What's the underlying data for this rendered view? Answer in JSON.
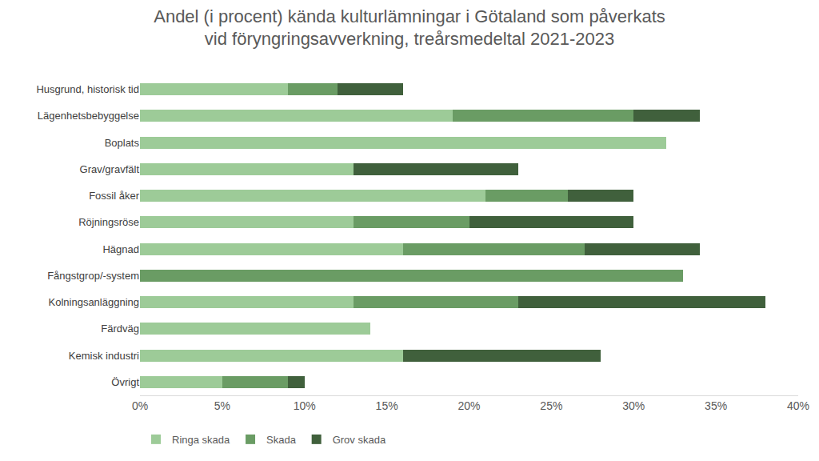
{
  "chart_data": {
    "type": "bar",
    "orientation": "horizontal",
    "stacked": true,
    "title": "Andel (i procent) kända kulturlämningar i Götaland som påverkats\nvid föryngringsavverkning, treårsmedeltal 2021-2023",
    "categories": [
      "Husgrund, historisk tid",
      "Lägenhetsbebyggelse",
      "Boplats",
      "Grav/gravfält",
      "Fossil åker",
      "Röjningsröse",
      "Hägnad",
      "Fångstgrop/-system",
      "Kolningsanläggning",
      "Färdväg",
      "Kemisk industri",
      "Övrigt"
    ],
    "series": [
      {
        "name": "Ringa skada",
        "color": "#9dcb98",
        "values": [
          9,
          19,
          32,
          13,
          21,
          13,
          16,
          0,
          13,
          14,
          16,
          5
        ]
      },
      {
        "name": "Skada",
        "color": "#6a9c64",
        "values": [
          3,
          11,
          0,
          0,
          5,
          7,
          11,
          33,
          10,
          0,
          0,
          4
        ]
      },
      {
        "name": "Grov skada",
        "color": "#40603c",
        "values": [
          4,
          4,
          0,
          10,
          4,
          10,
          7,
          0,
          15,
          0,
          12,
          1
        ]
      }
    ],
    "xlim": [
      0,
      40
    ],
    "xticks": [
      {
        "value": 0,
        "label": "0%"
      },
      {
        "value": 5,
        "label": "5%"
      },
      {
        "value": 10,
        "label": "10%"
      },
      {
        "value": 15,
        "label": "15%"
      },
      {
        "value": 20,
        "label": "20%"
      },
      {
        "value": 25,
        "label": "25%"
      },
      {
        "value": 30,
        "label": "30%"
      },
      {
        "value": 35,
        "label": "35%"
      },
      {
        "value": 40,
        "label": "40%"
      }
    ],
    "grid": false,
    "legend": "bottom left"
  }
}
